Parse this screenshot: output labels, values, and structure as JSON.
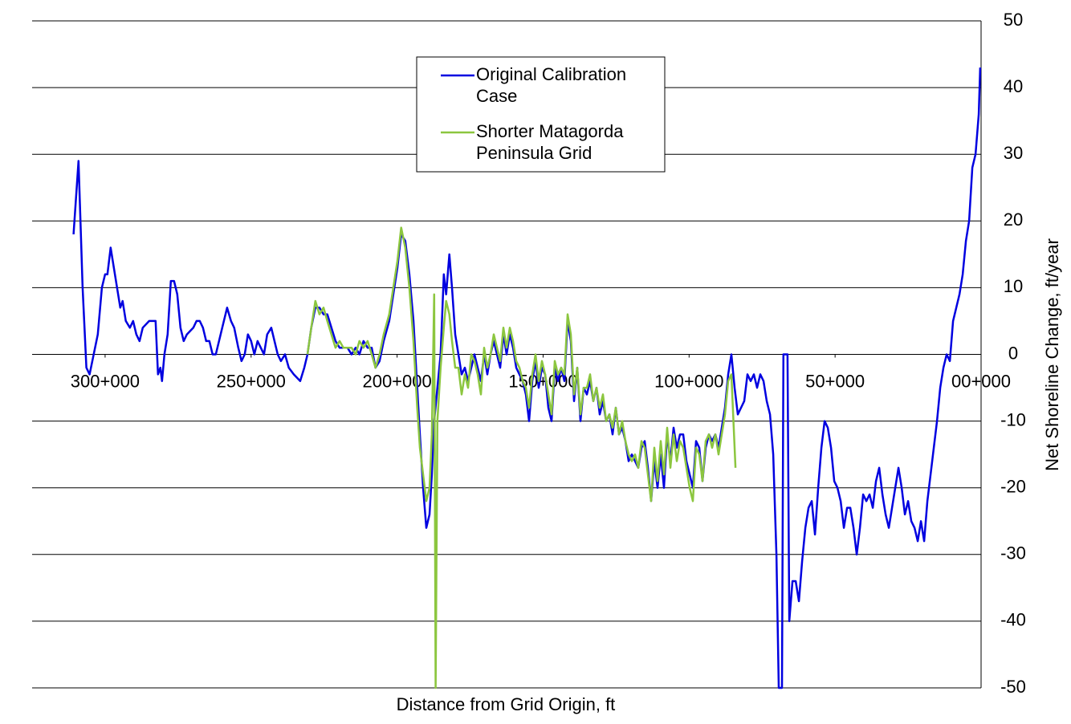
{
  "chart_data": {
    "type": "line",
    "xlabel": "Distance from Grid Origin, ft",
    "ylabel": "Net Shoreline Change, ft/year",
    "xlim": [
      325000,
      0
    ],
    "ylim": [
      -50,
      50
    ],
    "xticks": [
      {
        "value": 300000,
        "label": "300+000"
      },
      {
        "value": 250000,
        "label": "250+000"
      },
      {
        "value": 200000,
        "label": "200+000"
      },
      {
        "value": 150000,
        "label": "150+000"
      },
      {
        "value": 100000,
        "label": "100+000"
      },
      {
        "value": 50000,
        "label": "50+000"
      },
      {
        "value": 0,
        "label": "00+000"
      }
    ],
    "yticks": [
      -50,
      -40,
      -30,
      -20,
      -10,
      0,
      10,
      20,
      30,
      40,
      50
    ],
    "grid": true,
    "legend": "upper center",
    "series": [
      {
        "name": "Original Calibration Case",
        "color": "#0000e0",
        "x": [
          310800,
          309100,
          307700,
          306400,
          305300,
          303900,
          302500,
          301100,
          300000,
          299200,
          298100,
          297000,
          295900,
          294800,
          294000,
          292900,
          291500,
          290400,
          289300,
          288200,
          287100,
          284900,
          282700,
          281900,
          281100,
          280500,
          279700,
          278600,
          277500,
          276400,
          275300,
          274200,
          273100,
          272000,
          269800,
          268700,
          267600,
          266500,
          265400,
          264300,
          263200,
          262100,
          261000,
          259900,
          258200,
          256900,
          255800,
          254400,
          253300,
          252200,
          251100,
          250000,
          248900,
          247800,
          246700,
          245600,
          244500,
          243100,
          242000,
          240900,
          239800,
          238400,
          237100,
          235400,
          233200,
          231800,
          230700,
          229400,
          228000,
          226600,
          225200,
          223900,
          222500,
          221100,
          219700,
          218400,
          217000,
          215600,
          214200,
          212900,
          211500,
          210100,
          208700,
          207400,
          206000,
          204600,
          202700,
          201300,
          199900,
          198600,
          197200,
          195800,
          194400,
          193100,
          192200,
          191100,
          190000,
          188900,
          188100,
          187300,
          186200,
          185100,
          184000,
          183200,
          182100,
          181200,
          180100,
          179000,
          177900,
          176800,
          175700,
          174600,
          173500,
          172400,
          171300,
          170200,
          169100,
          168000,
          166900,
          165800,
          164700,
          163600,
          162500,
          161400,
          160300,
          159200,
          158100,
          157000,
          155900,
          154800,
          153700,
          152600,
          151500,
          150400,
          149300,
          148200,
          147100,
          146000,
          144900,
          143800,
          142700,
          141600,
          140500,
          139400,
          138300,
          137200,
          136100,
          135000,
          133900,
          132800,
          131700,
          130600,
          129500,
          128400,
          127300,
          126200,
          125100,
          124000,
          122900,
          121800,
          120700,
          119600,
          118500,
          117400,
          116300,
          115200,
          114100,
          113000,
          111900,
          110800,
          109700,
          108600,
          107500,
          106400,
          105300,
          104200,
          103100,
          102000,
          100900,
          99800,
          98700,
          97600,
          96500,
          95400,
          94300,
          93200,
          92100,
          91000,
          89900,
          88800,
          87700,
          86600,
          85500,
          84400,
          83300,
          82200,
          81100,
          80000,
          78900,
          77800,
          76700,
          75600,
          74500,
          73400,
          72300,
          71200,
          70100,
          69300,
          68200,
          67700,
          66300,
          65700,
          64600,
          63500,
          62400,
          61300,
          60200,
          59100,
          58000,
          56900,
          55800,
          54700,
          53600,
          52500,
          51400,
          50300,
          49200,
          48100,
          47000,
          45900,
          44800,
          43700,
          42600,
          41500,
          40400,
          39300,
          38200,
          37100,
          36000,
          34900,
          33800,
          32700,
          31600,
          30500,
          29400,
          28300,
          27200,
          26100,
          25000,
          23900,
          22800,
          21700,
          20600,
          19500,
          18400,
          17300,
          16200,
          15100,
          14000,
          12900,
          11800,
          10700,
          9600,
          8500,
          7400,
          6300,
          5200,
          4100,
          3000,
          1900,
          800,
          300
        ],
        "values": [
          18,
          29,
          10,
          -2,
          -3,
          0,
          3,
          10,
          12,
          12,
          16,
          13,
          10,
          7,
          8,
          5,
          4,
          5,
          3,
          2,
          4,
          5,
          5,
          -3,
          -2,
          -4,
          0,
          3,
          11,
          11,
          9,
          4,
          2,
          3,
          4,
          5,
          5,
          4,
          2,
          2,
          0,
          0,
          2,
          4,
          7,
          5,
          4,
          1,
          -1,
          0,
          3,
          2,
          0,
          2,
          1,
          0,
          3,
          4,
          2,
          0,
          -1,
          0,
          -2,
          -3,
          -4,
          -2,
          0,
          4,
          7,
          7,
          6,
          6,
          4,
          2,
          1,
          1,
          1,
          0,
          1,
          0,
          2,
          1,
          1,
          -2,
          -1,
          2,
          5,
          9,
          13,
          18,
          17,
          12,
          5,
          -5,
          -12,
          -20,
          -26,
          -24,
          -18,
          -10,
          -5,
          0,
          12,
          9,
          15,
          10,
          3,
          0,
          -3,
          -2,
          -4,
          -2,
          0,
          -2,
          -4,
          0,
          -3,
          0,
          2,
          0,
          -2,
          3,
          0,
          3,
          1,
          -2,
          -3,
          -4,
          -6,
          -10,
          -4,
          -1,
          -5,
          -2,
          -3,
          -8,
          -10,
          -2,
          -4,
          -2,
          -4,
          5,
          2,
          -7,
          -2,
          -10,
          -5,
          -6,
          -4,
          -7,
          -5,
          -9,
          -7,
          -10,
          -9,
          -12,
          -8,
          -12,
          -11,
          -13,
          -16,
          -15,
          -16,
          -17,
          -14,
          -13,
          -17,
          -22,
          -16,
          -20,
          -15,
          -20,
          -12,
          -16,
          -11,
          -14,
          -12,
          -12,
          -16,
          -18,
          -20,
          -13,
          -14,
          -19,
          -14,
          -12,
          -13,
          -12,
          -14,
          -11,
          -8,
          -3,
          0,
          -5,
          -9,
          -8,
          -7,
          -3,
          -4,
          -3,
          -5,
          -3,
          -4,
          -7,
          -9,
          -15,
          -30,
          -50,
          -50,
          0,
          0,
          -40,
          -34,
          -34,
          -37,
          -31,
          -26,
          -23,
          -22,
          -27,
          -20,
          -14,
          -10,
          -11,
          -14,
          -19,
          -20,
          -22,
          -26,
          -23,
          -23,
          -26,
          -30,
          -26,
          -21,
          -22,
          -21,
          -23,
          -19,
          -17,
          -21,
          -24,
          -26,
          -23,
          -20,
          -17,
          -20,
          -24,
          -22,
          -25,
          -26,
          -28,
          -25,
          -28,
          -22,
          -18,
          -14,
          -10,
          -5,
          -2,
          0,
          -1,
          5,
          7,
          9,
          12,
          17,
          20,
          28,
          30,
          36,
          43
        ]
      },
      {
        "name": "Shorter Matagorda Peninsula Grid",
        "color": "#8cc63f",
        "x": [
          230700,
          229400,
          228000,
          226600,
          225200,
          223900,
          222500,
          221100,
          219700,
          218400,
          217000,
          215600,
          214200,
          212900,
          211500,
          210100,
          208700,
          207400,
          206000,
          204600,
          202700,
          201300,
          199900,
          198600,
          197200,
          195800,
          194400,
          193100,
          192200,
          191100,
          190000,
          188900,
          188100,
          187300,
          186800,
          186200,
          185100,
          184000,
          183200,
          182100,
          181200,
          180100,
          179000,
          177900,
          176800,
          175700,
          174600,
          173500,
          172400,
          171300,
          170200,
          169100,
          168000,
          166900,
          165800,
          164700,
          163600,
          162500,
          161400,
          160300,
          159200,
          158100,
          157000,
          155900,
          154800,
          153700,
          152600,
          151500,
          150400,
          149300,
          148200,
          147100,
          146000,
          144900,
          143800,
          142700,
          141600,
          140500,
          139400,
          138300,
          137200,
          136100,
          135000,
          133900,
          132800,
          131700,
          130600,
          129500,
          128400,
          127300,
          126200,
          125100,
          124000,
          122900,
          121800,
          120700,
          119600,
          118500,
          117400,
          116300,
          115200,
          114100,
          113000,
          111900,
          110800,
          109700,
          108600,
          107500,
          106400,
          105300,
          104200,
          103100,
          102000,
          100900,
          99800,
          98700,
          97600,
          96500,
          95400,
          94300,
          93200,
          92100,
          91000,
          89900,
          88800,
          87700,
          86600,
          85500,
          84100
        ],
        "values": [
          0,
          4,
          8,
          6,
          7,
          5,
          3,
          1,
          2,
          1,
          1,
          1,
          0,
          2,
          1,
          2,
          0,
          -2,
          0,
          3,
          6,
          10,
          14,
          19,
          16,
          10,
          2,
          -8,
          -14,
          -18,
          -22,
          -20,
          -12,
          9,
          -50,
          -10,
          -2,
          4,
          8,
          6,
          2,
          -2,
          -2,
          -6,
          -3,
          -5,
          0,
          -1,
          -3,
          -6,
          1,
          -2,
          0,
          3,
          1,
          -1,
          4,
          1,
          4,
          2,
          -1,
          -2,
          -4,
          -5,
          -8,
          -3,
          0,
          -4,
          -1,
          -3,
          -6,
          -9,
          -1,
          -3,
          -2,
          -3,
          6,
          3,
          -6,
          -2,
          -9,
          -5,
          -5,
          -3,
          -7,
          -5,
          -8,
          -6,
          -10,
          -9,
          -11,
          -8,
          -12,
          -10,
          -13,
          -15,
          -16,
          -15,
          -17,
          -13,
          -14,
          -18,
          -22,
          -14,
          -19,
          -13,
          -18,
          -11,
          -17,
          -12,
          -16,
          -13,
          -14,
          -17,
          -20,
          -22,
          -14,
          -15,
          -19,
          -13,
          -12,
          -14,
          -12,
          -15,
          -12,
          -9,
          -4,
          -3,
          -17
        ]
      }
    ]
  }
}
